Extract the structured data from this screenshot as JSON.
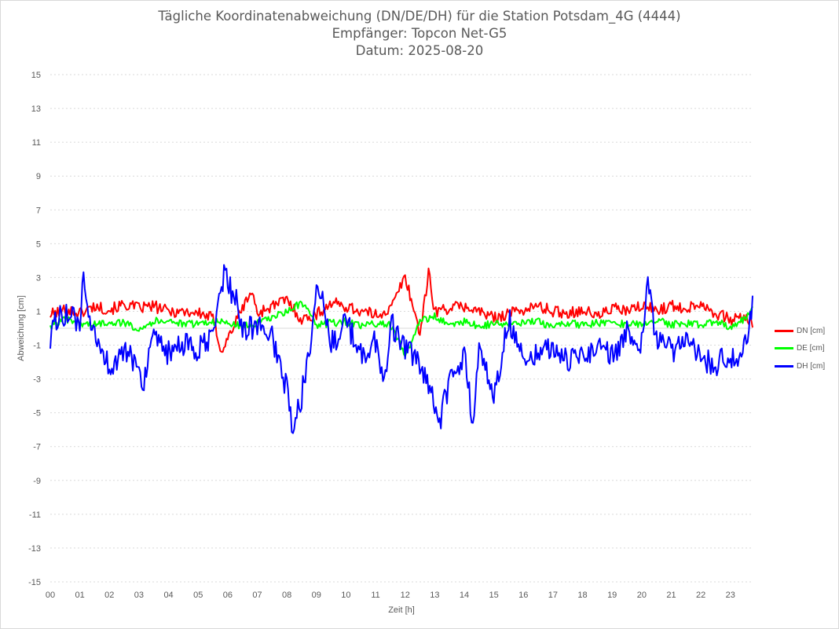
{
  "chart_data": {
    "type": "line",
    "title": "Tägliche Koordinatenabweichung (DN/DE/DH) für die Station Potsdam_4G (4444)",
    "subtitle_receiver": "Empfänger: Topcon Net-G5",
    "subtitle_date": "Datum: 2025-08-20",
    "xlabel": "Zeit [h]",
    "ylabel": "Abweichung [cm]",
    "xlim": [
      0,
      23.75
    ],
    "ylim": [
      -15,
      15
    ],
    "x_ticks": [
      "00",
      "01",
      "02",
      "03",
      "04",
      "05",
      "06",
      "07",
      "08",
      "09",
      "10",
      "11",
      "12",
      "13",
      "14",
      "15",
      "16",
      "17",
      "18",
      "19",
      "20",
      "21",
      "22",
      "23"
    ],
    "y_ticks": [
      15,
      13,
      11,
      9,
      7,
      5,
      3,
      1,
      -1,
      -3,
      -5,
      -7,
      -9,
      -11,
      -13,
      -15
    ],
    "grid": "horizontal-dotted",
    "legend_position": "right",
    "series": [
      {
        "name": "DN [cm]",
        "color": "#ff0000",
        "x": [
          0,
          0.5,
          1,
          1.5,
          2,
          2.5,
          3,
          3.5,
          4,
          4.5,
          5,
          5.5,
          5.8,
          6,
          6.5,
          6.8,
          7,
          7.5,
          8,
          8.5,
          9,
          9.5,
          10,
          10.5,
          11,
          11.5,
          12,
          12.5,
          12.8,
          13,
          13.5,
          14,
          14.5,
          15,
          15.5,
          16,
          16.5,
          17,
          17.5,
          18,
          18.5,
          19,
          19.5,
          20,
          20.5,
          21,
          21.5,
          22,
          22.5,
          23,
          23.5,
          23.75
        ],
        "values": [
          0.8,
          1.1,
          0.9,
          1.3,
          1.1,
          1.4,
          1.2,
          1.3,
          1.0,
          1.0,
          0.9,
          0.6,
          -1.4,
          -0.6,
          1.2,
          2.2,
          0.9,
          1.3,
          1.7,
          0.5,
          0.8,
          1.5,
          1.3,
          1.0,
          0.8,
          1.1,
          3.1,
          -0.3,
          3.3,
          1.0,
          1.2,
          1.3,
          1.0,
          0.6,
          0.9,
          1.1,
          1.3,
          1.0,
          0.9,
          1.1,
          0.7,
          1.2,
          1.0,
          1.3,
          1.1,
          1.3,
          1.2,
          1.5,
          0.9,
          0.5,
          0.7,
          0.1
        ]
      },
      {
        "name": "DE [cm]",
        "color": "#00ff00",
        "x": [
          0,
          0.5,
          1,
          1.5,
          2,
          2.5,
          3,
          3.5,
          4,
          4.5,
          5,
          5.5,
          6,
          6.5,
          7,
          7.5,
          8,
          8.5,
          9,
          9.5,
          10,
          10.5,
          11,
          11.5,
          12,
          12.5,
          13,
          13.5,
          14,
          14.5,
          15,
          15.5,
          16,
          16.5,
          17,
          17.5,
          18,
          18.5,
          19,
          19.5,
          20,
          20.5,
          21,
          21.5,
          22,
          22.5,
          23,
          23.5,
          23.75
        ],
        "values": [
          0.1,
          0.5,
          0.3,
          0.2,
          0.4,
          0.3,
          0.0,
          0.4,
          0.5,
          0.2,
          0.3,
          0.4,
          0.3,
          0.1,
          0.3,
          0.6,
          1.0,
          1.5,
          0.2,
          0.3,
          0.4,
          0.1,
          0.3,
          0.2,
          -1.6,
          0.4,
          0.7,
          0.2,
          0.4,
          0.1,
          0.3,
          0.2,
          0.3,
          0.4,
          0.1,
          0.3,
          0.2,
          0.3,
          0.4,
          0.2,
          0.3,
          0.5,
          0.2,
          0.3,
          0.2,
          0.4,
          0.1,
          0.6,
          1.2
        ]
      },
      {
        "name": "DH [cm]",
        "color": "#0000ff",
        "x": [
          0,
          0.25,
          0.5,
          1,
          1.1,
          1.3,
          1.7,
          2,
          2.5,
          3,
          3.1,
          3.5,
          4,
          4.5,
          5,
          5.5,
          5.9,
          6,
          6.3,
          6.5,
          7,
          7.5,
          8,
          8.2,
          8.5,
          8.9,
          9,
          9.5,
          10,
          10.5,
          11,
          11.3,
          11.5,
          12,
          12.5,
          13,
          13.2,
          13.5,
          14,
          14.3,
          14.5,
          15,
          15.5,
          16,
          16.5,
          17,
          17.5,
          18,
          18.5,
          19,
          19.5,
          20,
          20.2,
          20.5,
          21,
          21.5,
          22,
          22.5,
          23,
          23.4,
          23.75
        ],
        "values": [
          -0.5,
          0.6,
          0.9,
          0.2,
          3.0,
          0.1,
          -1.1,
          -2.3,
          -1.5,
          -2.1,
          -3.4,
          -0.8,
          -1.5,
          -1.0,
          -1.3,
          -0.6,
          3.6,
          2.5,
          1.8,
          -0.2,
          0.2,
          -0.5,
          -3.6,
          -6.2,
          -4.0,
          0.4,
          3.3,
          -1.0,
          0.4,
          -1.6,
          -0.8,
          -3.4,
          0.4,
          -1.2,
          -2.2,
          -4.6,
          -5.3,
          -3.2,
          -1.6,
          -5.7,
          -1.0,
          -4.1,
          0.6,
          -1.8,
          -1.3,
          -1.2,
          -2.0,
          -1.6,
          -1.0,
          -1.6,
          -0.3,
          -0.8,
          2.6,
          -0.8,
          -1.3,
          -0.9,
          -1.8,
          -2.1,
          -1.6,
          -1.9,
          1.2
        ]
      }
    ]
  }
}
